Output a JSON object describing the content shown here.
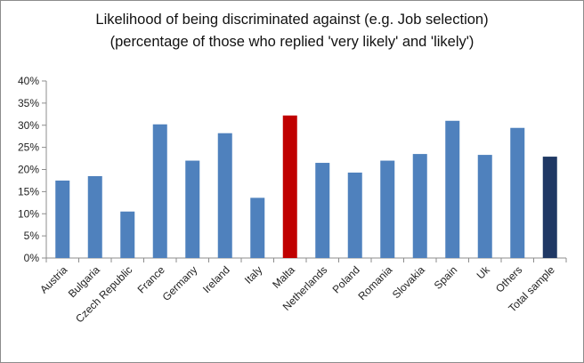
{
  "chart_data": {
    "type": "bar",
    "title": "Likelihood of being discriminated against (e.g. Job selection)",
    "subtitle": "(percentage of those who replied 'very likely' and 'likely')",
    "xlabel": "",
    "ylabel": "",
    "ylim": [
      0,
      40
    ],
    "yticks": [
      "0%",
      "5%",
      "10%",
      "15%",
      "20%",
      "25%",
      "30%",
      "35%",
      "40%"
    ],
    "grid": false,
    "legend": "none",
    "categories": [
      "Austria",
      "Bulgaria",
      "Czech Republic",
      "France",
      "Germany",
      "Ireland",
      "Italy",
      "Malta",
      "Netherlands",
      "Poland",
      "Romania",
      "Slovakia",
      "Spain",
      "Uk",
      "Others",
      "Total sample"
    ],
    "values": [
      17.5,
      18.5,
      10.5,
      30.2,
      22.0,
      28.2,
      13.6,
      32.2,
      21.5,
      19.3,
      22.0,
      23.5,
      31.0,
      23.3,
      29.4,
      22.9
    ],
    "colors": [
      "#4f81bd",
      "#4f81bd",
      "#4f81bd",
      "#4f81bd",
      "#4f81bd",
      "#4f81bd",
      "#4f81bd",
      "#c00000",
      "#4f81bd",
      "#4f81bd",
      "#4f81bd",
      "#4f81bd",
      "#4f81bd",
      "#4f81bd",
      "#4f81bd",
      "#1f3864"
    ]
  }
}
